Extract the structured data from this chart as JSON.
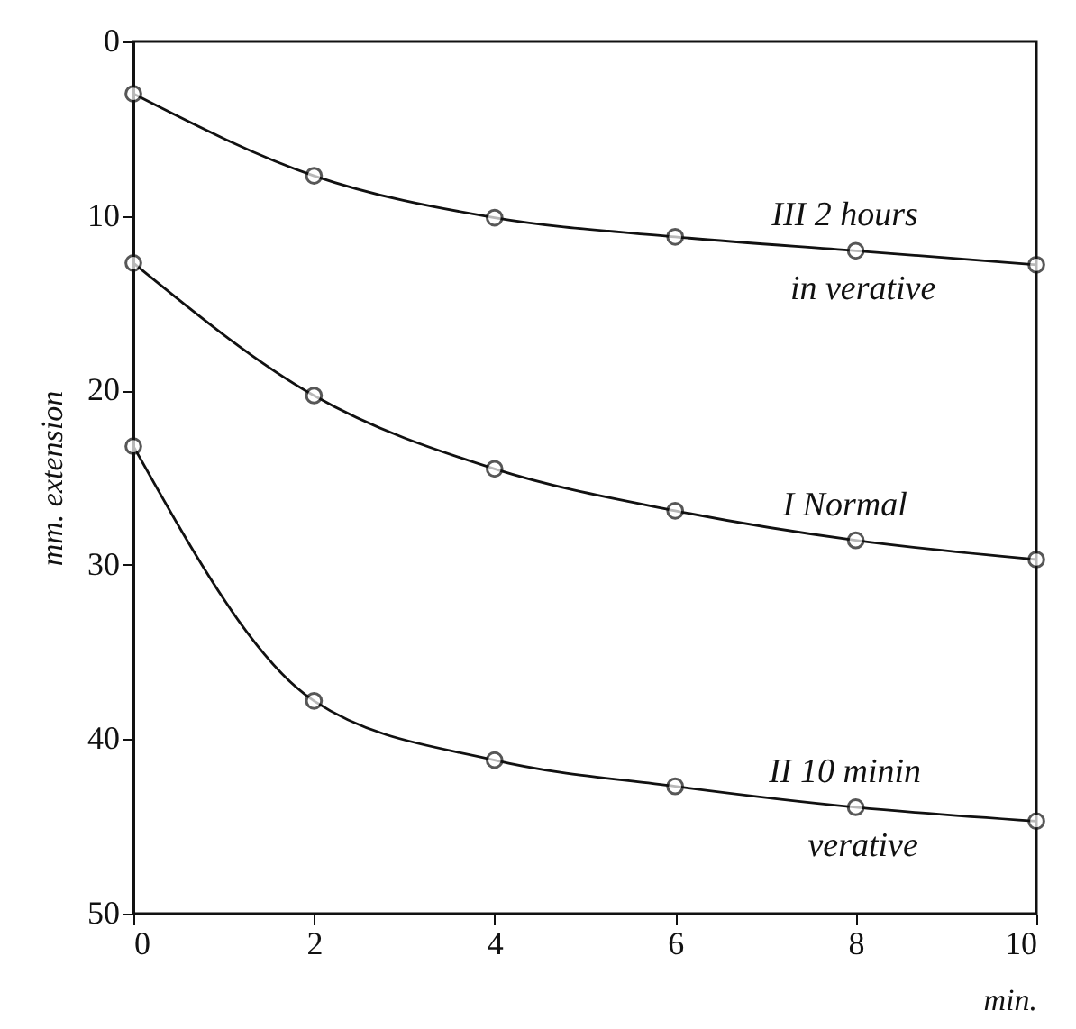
{
  "chart_data": {
    "type": "line",
    "xlabel": "min.",
    "ylabel": "mm. extension",
    "x": [
      0,
      2,
      4,
      6,
      8,
      10
    ],
    "series": [
      {
        "name": "III 2 hours\nin verative",
        "color": "#111111",
        "values": [
          3.0,
          7.7,
          10.1,
          11.2,
          12.0,
          12.8
        ]
      },
      {
        "name": "I Normal",
        "color": "#111111",
        "values": [
          12.7,
          20.3,
          24.5,
          26.9,
          28.6,
          29.7
        ]
      },
      {
        "name": "II 10 minin\nverative",
        "color": "#111111",
        "values": [
          23.2,
          37.8,
          41.2,
          42.7,
          43.9,
          44.7
        ]
      }
    ],
    "xlim": [
      0,
      10
    ],
    "xticks": [
      0,
      2,
      4,
      6,
      8,
      10
    ],
    "ylim": [
      50,
      0
    ],
    "yticks": [
      0,
      10,
      20,
      30,
      40,
      50
    ],
    "grid": false,
    "marker": "circle",
    "line_style": "solid"
  }
}
